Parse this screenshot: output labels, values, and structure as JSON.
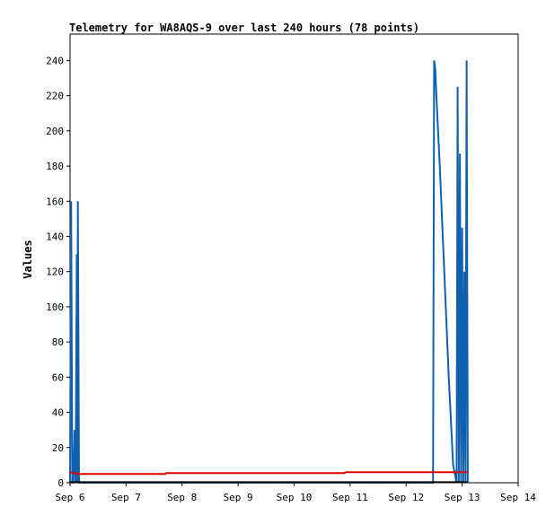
{
  "chart_data": {
    "type": "line",
    "title": "Telemetry for WA8AQS-9 over last 240 hours (78 points)",
    "xlabel": "",
    "ylabel": "Values",
    "x_ticks": [
      "Sep 6",
      "Sep 7",
      "Sep 8",
      "Sep 9",
      "Sep 10",
      "Sep 11",
      "Sep 12",
      "Sep 13",
      "Sep 14"
    ],
    "xlim": [
      0,
      8
    ],
    "ylim": [
      0,
      255
    ],
    "y_ticks": [
      0,
      20,
      40,
      60,
      80,
      100,
      120,
      140,
      160,
      180,
      200,
      220,
      240
    ],
    "grid": false,
    "series": [
      {
        "color": "#1060b0",
        "x": [
          0.0,
          0.02,
          0.04,
          0.06,
          0.08,
          0.1,
          0.12,
          0.13,
          0.14,
          0.16,
          0.18,
          6.48,
          6.5,
          6.52,
          6.54,
          6.6,
          6.68,
          6.76,
          6.84,
          6.9,
          6.92,
          6.94,
          6.96,
          6.98,
          7.0,
          7.02,
          7.04,
          7.06,
          7.08,
          7.1
        ],
        "y": [
          0,
          160,
          0,
          0,
          30,
          0,
          130,
          0,
          160,
          0,
          0,
          0,
          240,
          235,
          220,
          180,
          120,
          60,
          10,
          0,
          225,
          0,
          187,
          0,
          145,
          0,
          120,
          0,
          240,
          0
        ]
      },
      {
        "color": "#dd0000",
        "x": [
          0.0,
          0.15,
          1.7,
          1.72,
          4.9,
          4.92,
          7.1
        ],
        "y": [
          6,
          5,
          5,
          5.5,
          5.5,
          6,
          6
        ]
      },
      {
        "color": "#000000",
        "x": [
          0.0,
          7.1
        ],
        "y": [
          0.3,
          0.3
        ]
      }
    ]
  }
}
